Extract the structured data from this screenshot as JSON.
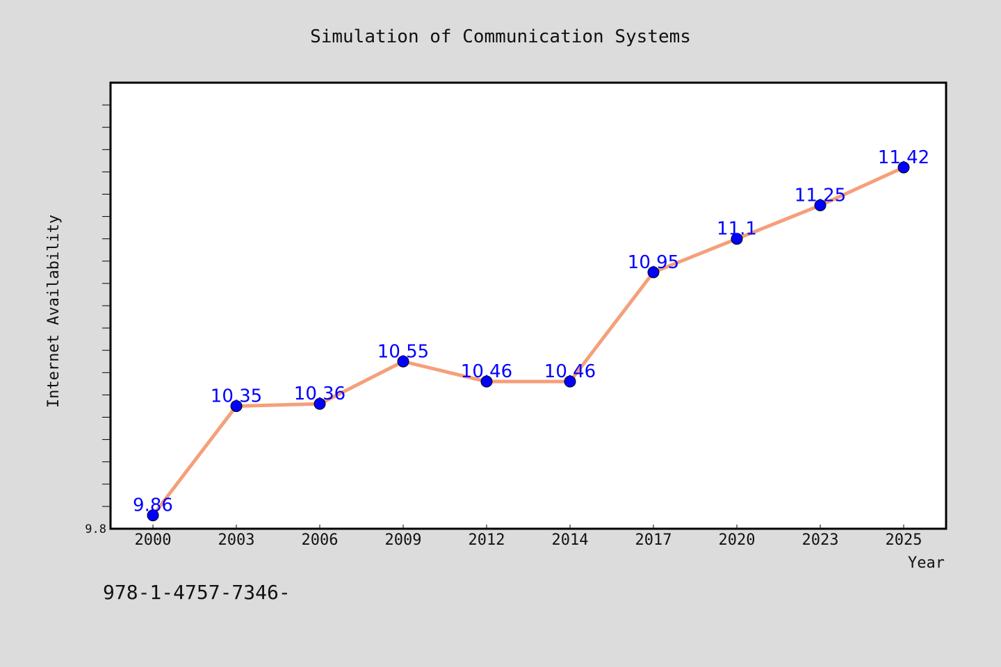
{
  "footnote": "978-1-4757-7346-",
  "colors": {
    "background": "#dcdcdc",
    "plot_background": "#ffffff",
    "line": "#f4a07a",
    "marker": "#0000ff",
    "data_label": "#0000ff"
  },
  "chart_data": {
    "type": "line",
    "title": "Simulation of Communication Systems",
    "xlabel": "Year",
    "ylabel": "Internet Availability",
    "categories": [
      "2000",
      "2003",
      "2006",
      "2009",
      "2012",
      "2014",
      "2017",
      "2020",
      "2023",
      "2025"
    ],
    "series": [
      {
        "values": [
          9.86,
          10.35,
          10.36,
          10.55,
          10.46,
          10.46,
          10.95,
          11.1,
          11.25,
          11.42
        ],
        "labels": [
          "9.86",
          "10.35",
          "10.36",
          "10.55",
          "10.46",
          "10.46",
          "10.95",
          "11.1",
          "11.25",
          "11.42"
        ]
      }
    ],
    "ylim": [
      9.8,
      11.8
    ],
    "ytick_labels": [
      "9.8"
    ],
    "minor_ytick_step": 0.1,
    "grid": false,
    "legend": "none"
  }
}
